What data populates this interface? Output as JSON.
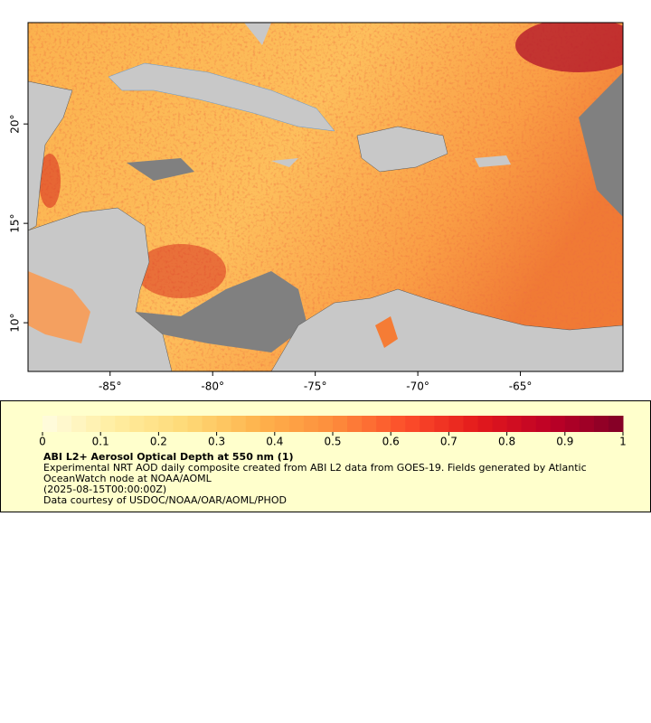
{
  "map": {
    "xlim": [
      -89,
      -60
    ],
    "ylim": [
      7.55,
      25.1
    ],
    "xticks": [
      {
        "value": -85,
        "label": "-85°"
      },
      {
        "value": -80,
        "label": "-80°"
      },
      {
        "value": -75,
        "label": "-75°"
      },
      {
        "value": -70,
        "label": "-70°"
      },
      {
        "value": -65,
        "label": "-65°"
      }
    ],
    "yticks": [
      {
        "value": 10,
        "label": "10°"
      },
      {
        "value": 15,
        "label": "15°"
      },
      {
        "value": 20,
        "label": "20°"
      }
    ]
  },
  "colorbar": {
    "lim": [
      0,
      1
    ],
    "ticks": [
      0,
      0.1,
      0.2,
      0.3,
      0.4,
      0.5,
      0.6,
      0.7,
      0.8,
      0.9,
      1
    ],
    "colormap": [
      "#fffde0",
      "#ffeda0",
      "#fed976",
      "#feb24c",
      "#fd8d3c",
      "#fc4e2a",
      "#e31a1c",
      "#bd0026",
      "#800026"
    ]
  },
  "legend": {
    "title": "ABI L2+ Aerosol Optical Depth at 550 nm (1)",
    "description": "Experimental NRT AOD daily composite created from ABI L2 data from GOES-19. Fields generated by Atlantic OceanWatch node at NOAA/AOML",
    "date": "(2025-08-15T00:00:00Z)",
    "credit": "Data courtesy of USDOC/NOAA/OAR/AOML/PHOD"
  }
}
